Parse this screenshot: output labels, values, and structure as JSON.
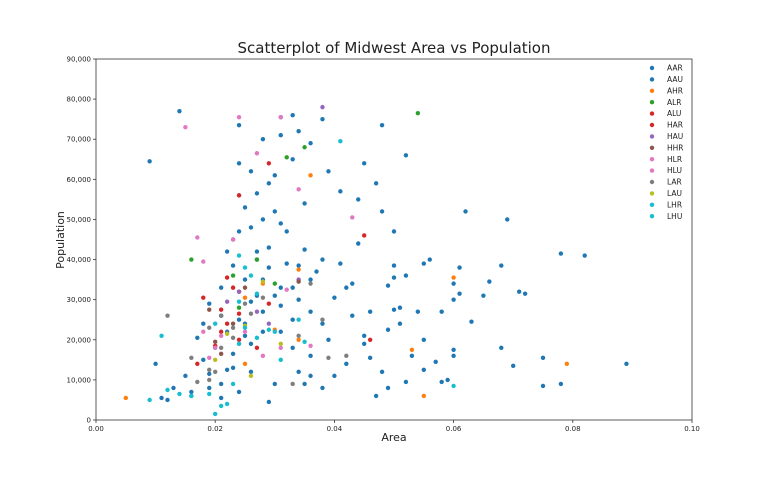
{
  "chart_data": {
    "type": "scatter",
    "title": "Scatterplot of Midwest Area vs Population",
    "xlabel": "Area",
    "ylabel": "Population",
    "xlim": [
      0,
      0.1
    ],
    "ylim": [
      0,
      90000
    ],
    "xticks": [
      "0.00",
      "0.02",
      "0.04",
      "0.06",
      "0.08",
      "0.10"
    ],
    "yticks": [
      "0",
      "10,000",
      "20,000",
      "30,000",
      "40,000",
      "50,000",
      "60,000",
      "70,000",
      "80,000",
      "90,000"
    ],
    "grid": false,
    "legend_position": "top-right",
    "series": [
      {
        "name": "AAR",
        "color": "#1f77b4",
        "points": [
          [
            0.009,
            64500
          ],
          [
            0.014,
            77000
          ],
          [
            0.024,
            73500
          ],
          [
            0.031,
            75500
          ],
          [
            0.033,
            76000
          ],
          [
            0.038,
            75000
          ],
          [
            0.048,
            73500
          ],
          [
            0.024,
            64000
          ],
          [
            0.028,
            70000
          ],
          [
            0.034,
            72000
          ],
          [
            0.036,
            69000
          ],
          [
            0.045,
            64000
          ],
          [
            0.052,
            66000
          ],
          [
            0.047,
            59000
          ],
          [
            0.044,
            55000
          ],
          [
            0.048,
            52000
          ],
          [
            0.05,
            47000
          ],
          [
            0.062,
            52000
          ],
          [
            0.069,
            50000
          ],
          [
            0.05,
            38500
          ],
          [
            0.052,
            36000
          ],
          [
            0.055,
            39000
          ],
          [
            0.056,
            40000
          ],
          [
            0.061,
            38000
          ],
          [
            0.068,
            38500
          ],
          [
            0.065,
            31000
          ],
          [
            0.071,
            32000
          ],
          [
            0.078,
            41500
          ],
          [
            0.082,
            41000
          ],
          [
            0.06,
            30000
          ],
          [
            0.055,
            20000
          ],
          [
            0.057,
            14500
          ],
          [
            0.063,
            24500
          ],
          [
            0.068,
            18000
          ],
          [
            0.07,
            13500
          ],
          [
            0.075,
            15500
          ],
          [
            0.078,
            9000
          ],
          [
            0.075,
            8500
          ],
          [
            0.089,
            14000
          ],
          [
            0.058,
            9500
          ],
          [
            0.06,
            16000
          ],
          [
            0.052,
            9500
          ],
          [
            0.049,
            22500
          ],
          [
            0.045,
            21000
          ],
          [
            0.047,
            6000
          ],
          [
            0.043,
            26000
          ],
          [
            0.04,
            30500
          ],
          [
            0.042,
            33000
          ],
          [
            0.043,
            34000
          ],
          [
            0.038,
            24000
          ],
          [
            0.036,
            27000
          ],
          [
            0.034,
            38500
          ],
          [
            0.032,
            47000
          ],
          [
            0.03,
            52000
          ],
          [
            0.029,
            59000
          ],
          [
            0.028,
            50000
          ],
          [
            0.026,
            48000
          ],
          [
            0.024,
            47000
          ],
          [
            0.022,
            42000
          ],
          [
            0.023,
            38500
          ],
          [
            0.025,
            35000
          ],
          [
            0.027,
            31000
          ],
          [
            0.028,
            27000
          ],
          [
            0.031,
            22000
          ],
          [
            0.033,
            18000
          ],
          [
            0.036,
            16000
          ],
          [
            0.039,
            20000
          ],
          [
            0.03,
            9000
          ],
          [
            0.029,
            4500
          ],
          [
            0.024,
            7000
          ],
          [
            0.021,
            9000
          ],
          [
            0.019,
            11500
          ],
          [
            0.018,
            15000
          ],
          [
            0.017,
            20500
          ],
          [
            0.02,
            18000
          ],
          [
            0.022,
            22000
          ],
          [
            0.024,
            25000
          ],
          [
            0.026,
            29500
          ],
          [
            0.03,
            31000
          ],
          [
            0.031,
            28500
          ],
          [
            0.034,
            30000
          ],
          [
            0.032,
            39000
          ],
          [
            0.035,
            42500
          ],
          [
            0.037,
            37000
          ],
          [
            0.029,
            43000
          ],
          [
            0.025,
            53000
          ],
          [
            0.03,
            61000
          ],
          [
            0.027,
            56500
          ],
          [
            0.025,
            24000
          ],
          [
            0.026,
            19000
          ],
          [
            0.022,
            12500
          ],
          [
            0.013,
            8000
          ],
          [
            0.016,
            6000
          ],
          [
            0.012,
            5000
          ],
          [
            0.01,
            14000
          ],
          [
            0.011,
            5500
          ],
          [
            0.015,
            11000
          ],
          [
            0.023,
            16500
          ],
          [
            0.021,
            26000
          ],
          [
            0.028,
            22000
          ],
          [
            0.034,
            12000
          ],
          [
            0.036,
            11000
          ],
          [
            0.04,
            11000
          ],
          [
            0.042,
            14000
          ],
          [
            0.045,
            19000
          ],
          [
            0.051,
            28000
          ],
          [
            0.054,
            27000
          ],
          [
            0.06,
            17500
          ],
          [
            0.059,
            10000
          ],
          [
            0.05,
            27500
          ],
          [
            0.049,
            33500
          ],
          [
            0.06,
            34000
          ],
          [
            0.066,
            34500
          ],
          [
            0.072,
            31500
          ],
          [
            0.044,
            44000
          ],
          [
            0.041,
            39000
          ],
          [
            0.038,
            40000
          ],
          [
            0.036,
            35000
          ],
          [
            0.033,
            33000
          ],
          [
            0.029,
            38000
          ],
          [
            0.027,
            42000
          ],
          [
            0.023,
            45000
          ],
          [
            0.021,
            33000
          ],
          [
            0.019,
            29000
          ],
          [
            0.018,
            24000
          ]
        ]
      },
      {
        "name": "AAU",
        "color": "#1f77b4",
        "points": [
          [
            0.031,
            71000
          ],
          [
            0.033,
            65000
          ],
          [
            0.026,
            62000
          ],
          [
            0.035,
            54000
          ],
          [
            0.024,
            56000
          ],
          [
            0.039,
            62000
          ],
          [
            0.041,
            57000
          ],
          [
            0.031,
            49000
          ],
          [
            0.027,
            40000
          ],
          [
            0.028,
            35000
          ],
          [
            0.031,
            33000
          ],
          [
            0.033,
            25000
          ],
          [
            0.025,
            21000
          ],
          [
            0.023,
            13000
          ],
          [
            0.019,
            8000
          ],
          [
            0.016,
            7000
          ],
          [
            0.021,
            5500
          ],
          [
            0.026,
            12000
          ],
          [
            0.035,
            9000
          ],
          [
            0.038,
            8000
          ],
          [
            0.046,
            15500
          ],
          [
            0.048,
            12000
          ],
          [
            0.051,
            24000
          ],
          [
            0.053,
            16000
          ],
          [
            0.049,
            8000
          ],
          [
            0.055,
            12500
          ],
          [
            0.05,
            35500
          ],
          [
            0.046,
            27000
          ],
          [
            0.058,
            27000
          ],
          [
            0.061,
            31500
          ]
        ]
      },
      {
        "name": "AHR",
        "color": "#ff7f0e",
        "points": [
          [
            0.005,
            5500
          ],
          [
            0.025,
            30500
          ],
          [
            0.028,
            34000
          ],
          [
            0.034,
            37500
          ],
          [
            0.036,
            61000
          ],
          [
            0.034,
            20000
          ],
          [
            0.053,
            17500
          ],
          [
            0.055,
            6000
          ],
          [
            0.06,
            35500
          ],
          [
            0.079,
            14000
          ],
          [
            0.03,
            22500
          ],
          [
            0.025,
            14000
          ]
        ]
      },
      {
        "name": "ALR",
        "color": "#2ca02c",
        "points": [
          [
            0.054,
            76500
          ],
          [
            0.035,
            68000
          ],
          [
            0.032,
            65500
          ],
          [
            0.016,
            40000
          ],
          [
            0.027,
            40000
          ],
          [
            0.023,
            36000
          ],
          [
            0.024,
            28000
          ],
          [
            0.03,
            34000
          ]
        ]
      },
      {
        "name": "ALU",
        "color": "#d62728",
        "points": [
          [
            0.024,
            56000
          ],
          [
            0.029,
            64000
          ],
          [
            0.045,
            46000
          ],
          [
            0.018,
            30500
          ],
          [
            0.021,
            27500
          ],
          [
            0.022,
            35500
          ],
          [
            0.024,
            32000
          ],
          [
            0.029,
            29000
          ],
          [
            0.046,
            20000
          ],
          [
            0.022,
            24000
          ]
        ]
      },
      {
        "name": "HAR",
        "color": "#d62728",
        "points": [
          [
            0.024,
            26500
          ],
          [
            0.023,
            33000
          ],
          [
            0.02,
            18500
          ],
          [
            0.017,
            14000
          ],
          [
            0.027,
            18000
          ],
          [
            0.021,
            22000
          ],
          [
            0.024,
            20000
          ]
        ]
      },
      {
        "name": "HAU",
        "color": "#9467bd",
        "points": [
          [
            0.038,
            78000
          ],
          [
            0.022,
            29500
          ],
          [
            0.024,
            32000
          ],
          [
            0.034,
            35000
          ],
          [
            0.027,
            27000
          ],
          [
            0.029,
            24000
          ]
        ]
      },
      {
        "name": "HHR",
        "color": "#8c564b",
        "points": [
          [
            0.02,
            19500
          ],
          [
            0.023,
            24000
          ],
          [
            0.025,
            33000
          ],
          [
            0.034,
            34500
          ],
          [
            0.019,
            27500
          ],
          [
            0.021,
            16500
          ]
        ]
      },
      {
        "name": "HLR",
        "color": "#e377c2",
        "points": [
          [
            0.015,
            73000
          ],
          [
            0.024,
            75500
          ],
          [
            0.031,
            75500
          ],
          [
            0.027,
            66500
          ],
          [
            0.034,
            57500
          ],
          [
            0.017,
            45500
          ],
          [
            0.023,
            45000
          ],
          [
            0.043,
            50500
          ],
          [
            0.032,
            32500
          ],
          [
            0.025,
            22000
          ],
          [
            0.018,
            39500
          ],
          [
            0.02,
            18000
          ],
          [
            0.036,
            18500
          ]
        ]
      },
      {
        "name": "HLU",
        "color": "#e377c2",
        "points": [
          [
            0.021,
            21000
          ],
          [
            0.019,
            15500
          ],
          [
            0.028,
            16000
          ],
          [
            0.024,
            19000
          ],
          [
            0.018,
            22000
          ],
          [
            0.031,
            18000
          ]
        ]
      },
      {
        "name": "LAR",
        "color": "#7f7f7f",
        "points": [
          [
            0.012,
            26000
          ],
          [
            0.019,
            10000
          ],
          [
            0.02,
            12000
          ],
          [
            0.021,
            18000
          ],
          [
            0.023,
            23000
          ],
          [
            0.025,
            29000
          ],
          [
            0.028,
            30500
          ],
          [
            0.019,
            23000
          ],
          [
            0.021,
            26000
          ],
          [
            0.017,
            9500
          ],
          [
            0.019,
            12500
          ],
          [
            0.034,
            21000
          ],
          [
            0.036,
            34000
          ],
          [
            0.039,
            15500
          ],
          [
            0.042,
            16000
          ],
          [
            0.038,
            25000
          ],
          [
            0.033,
            9000
          ],
          [
            0.016,
            15500
          ],
          [
            0.023,
            20500
          ],
          [
            0.026,
            26500
          ]
        ]
      },
      {
        "name": "LAU",
        "color": "#bcbd22",
        "points": [
          [
            0.022,
            21500
          ],
          [
            0.026,
            11000
          ],
          [
            0.031,
            19000
          ],
          [
            0.025,
            23500
          ],
          [
            0.02,
            15000
          ],
          [
            0.028,
            34500
          ]
        ]
      },
      {
        "name": "LHR",
        "color": "#17becf",
        "points": [
          [
            0.041,
            69500
          ],
          [
            0.025,
            38000
          ],
          [
            0.024,
            41000
          ],
          [
            0.026,
            36000
          ],
          [
            0.027,
            31500
          ],
          [
            0.031,
            15000
          ],
          [
            0.034,
            25000
          ],
          [
            0.03,
            22000
          ],
          [
            0.02,
            24000
          ],
          [
            0.024,
            29500
          ]
        ]
      },
      {
        "name": "LHU",
        "color": "#17becf",
        "points": [
          [
            0.011,
            21000
          ],
          [
            0.012,
            7500
          ],
          [
            0.009,
            5000
          ],
          [
            0.02,
            1500
          ],
          [
            0.022,
            4000
          ],
          [
            0.021,
            3500
          ],
          [
            0.014,
            6500
          ],
          [
            0.023,
            9000
          ],
          [
            0.025,
            23000
          ],
          [
            0.027,
            20500
          ],
          [
            0.035,
            19500
          ],
          [
            0.06,
            8500
          ],
          [
            0.029,
            22500
          ],
          [
            0.019,
            6500
          ],
          [
            0.016,
            6000
          ],
          [
            0.024,
            19000
          ]
        ]
      }
    ]
  }
}
